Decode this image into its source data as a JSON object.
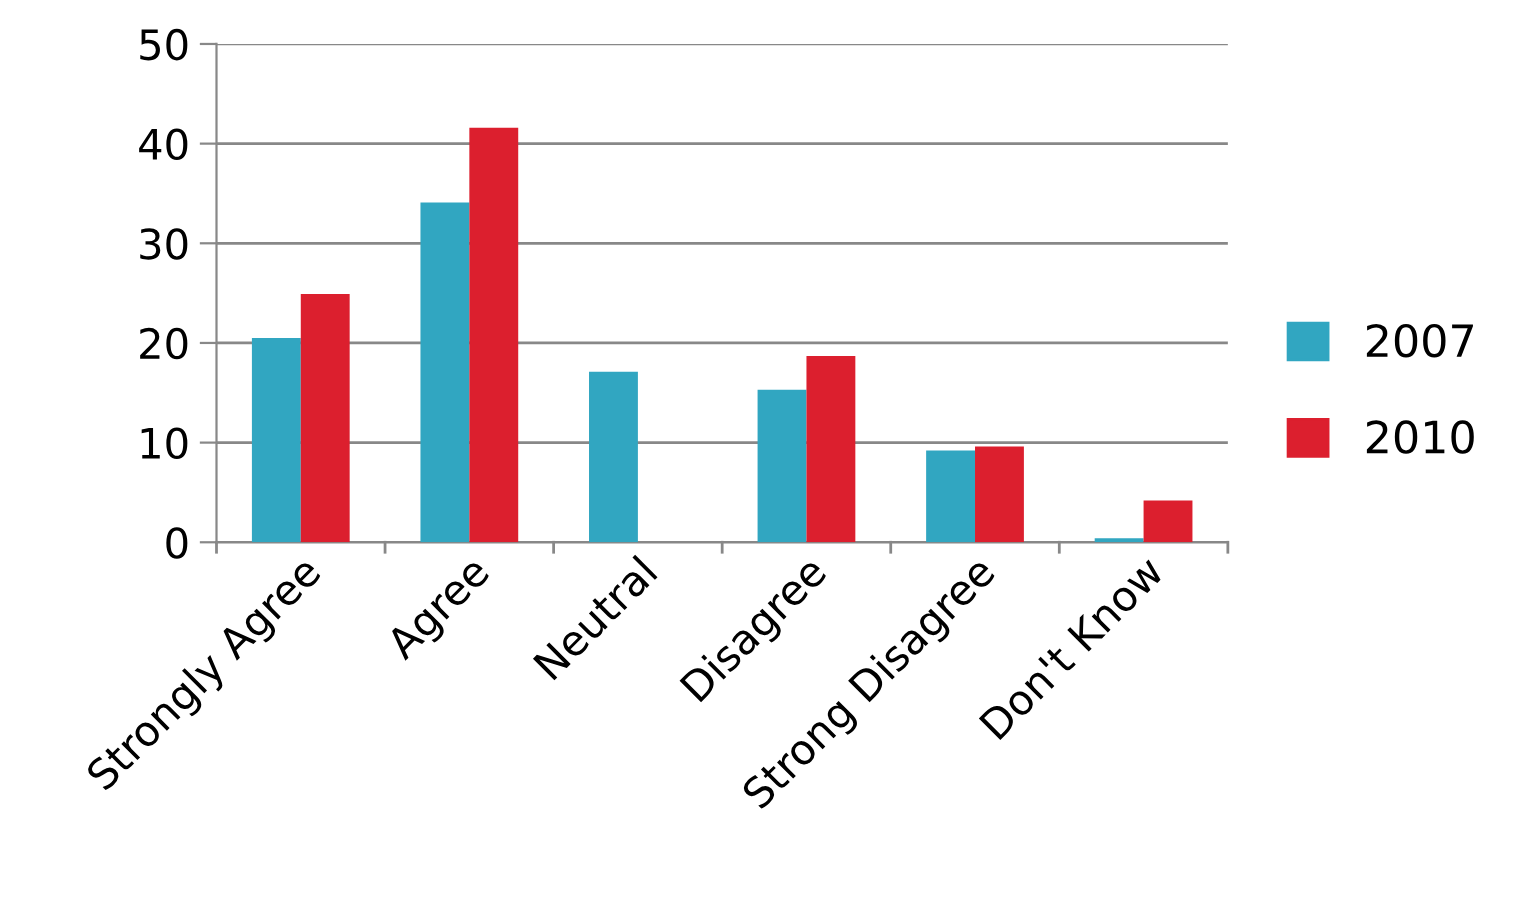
{
  "chart_data": {
    "type": "bar",
    "categories": [
      "Strongly Agree",
      "Agree",
      "Neutral",
      "Disagree",
      "Strong Disagree",
      "Don't Know"
    ],
    "series": [
      {
        "name": "2007",
        "color": "#31a6c1",
        "values": [
          20.5,
          34.1,
          17.1,
          15.3,
          9.2,
          0.4
        ]
      },
      {
        "name": "2010",
        "color": "#dc1f2e",
        "values": [
          24.9,
          41.6,
          null,
          18.7,
          9.6,
          4.2
        ]
      }
    ],
    "ylim": [
      0,
      50
    ],
    "yticks": [
      0,
      10,
      20,
      30,
      40,
      50
    ],
    "grid": "y",
    "legend": "right"
  }
}
